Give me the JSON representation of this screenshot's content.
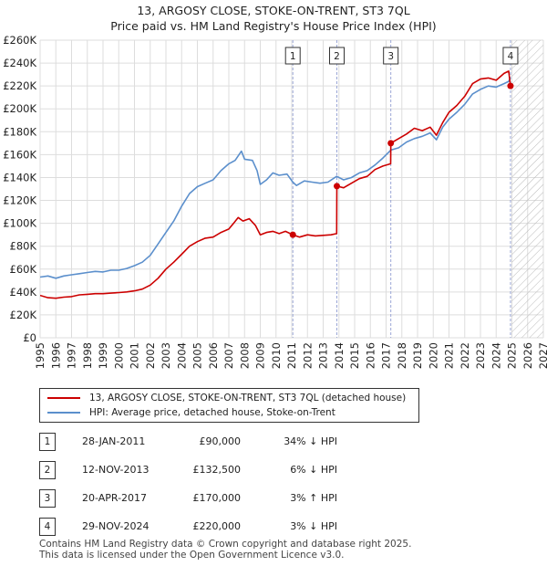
{
  "chart_data": {
    "type": "line",
    "title": "13, ARGOSY CLOSE, STOKE-ON-TRENT, ST3 7QL",
    "subtitle": "Price paid vs. HM Land Registry's House Price Index (HPI)",
    "xlim": [
      1995,
      2027
    ],
    "ylim": [
      0,
      260000
    ],
    "x_ticks": [
      1995,
      1996,
      1997,
      1998,
      1999,
      2000,
      2001,
      2002,
      2003,
      2004,
      2005,
      2006,
      2007,
      2008,
      2009,
      2010,
      2011,
      2012,
      2013,
      2014,
      2015,
      2016,
      2017,
      2018,
      2019,
      2020,
      2021,
      2022,
      2023,
      2024,
      2025,
      2026,
      2027
    ],
    "y_ticks": [
      0,
      20000,
      40000,
      60000,
      80000,
      100000,
      120000,
      140000,
      160000,
      180000,
      200000,
      220000,
      240000,
      260000
    ],
    "y_tick_labels": [
      "£0",
      "£20K",
      "£40K",
      "£60K",
      "£80K",
      "£100K",
      "£120K",
      "£140K",
      "£160K",
      "£180K",
      "£200K",
      "£220K",
      "£240K",
      "£260K"
    ],
    "forecast_start": 2025.0,
    "series": [
      {
        "name": "13, ARGOSY CLOSE, STOKE-ON-TRENT, ST3 7QL (detached house)",
        "color": "#cc0000",
        "points": [
          [
            1995.0,
            37000
          ],
          [
            1995.5,
            35000
          ],
          [
            1996.0,
            34500
          ],
          [
            1996.5,
            35500
          ],
          [
            1997.0,
            36000
          ],
          [
            1997.5,
            37500
          ],
          [
            1998.0,
            38000
          ],
          [
            1998.5,
            38500
          ],
          [
            1999.0,
            38500
          ],
          [
            1999.5,
            39000
          ],
          [
            2000.0,
            39500
          ],
          [
            2000.5,
            40000
          ],
          [
            2001.0,
            41000
          ],
          [
            2001.5,
            42500
          ],
          [
            2002.0,
            46000
          ],
          [
            2002.5,
            52000
          ],
          [
            2003.0,
            60000
          ],
          [
            2003.5,
            66000
          ],
          [
            2004.0,
            73000
          ],
          [
            2004.5,
            80000
          ],
          [
            2005.0,
            84000
          ],
          [
            2005.5,
            87000
          ],
          [
            2006.0,
            88000
          ],
          [
            2006.5,
            92000
          ],
          [
            2007.0,
            95000
          ],
          [
            2007.3,
            100000
          ],
          [
            2007.6,
            105000
          ],
          [
            2007.9,
            102000
          ],
          [
            2008.3,
            104000
          ],
          [
            2008.7,
            98000
          ],
          [
            2009.0,
            90000
          ],
          [
            2009.4,
            92000
          ],
          [
            2009.8,
            93000
          ],
          [
            2010.2,
            91000
          ],
          [
            2010.6,
            93000
          ],
          [
            2011.07,
            90000
          ],
          [
            2011.5,
            88000
          ],
          [
            2012.0,
            90000
          ],
          [
            2012.5,
            89000
          ],
          [
            2013.0,
            89500
          ],
          [
            2013.5,
            90000
          ],
          [
            2013.86,
            91000
          ],
          [
            2013.87,
            132500
          ],
          [
            2014.3,
            131000
          ],
          [
            2014.8,
            135000
          ],
          [
            2015.3,
            139000
          ],
          [
            2015.8,
            141000
          ],
          [
            2016.3,
            147000
          ],
          [
            2016.8,
            150000
          ],
          [
            2017.29,
            152000
          ],
          [
            2017.3,
            170000
          ],
          [
            2017.8,
            174000
          ],
          [
            2018.3,
            178000
          ],
          [
            2018.8,
            183000
          ],
          [
            2019.3,
            181000
          ],
          [
            2019.8,
            184000
          ],
          [
            2020.2,
            177000
          ],
          [
            2020.6,
            188000
          ],
          [
            2021.0,
            197000
          ],
          [
            2021.5,
            203000
          ],
          [
            2022.0,
            211000
          ],
          [
            2022.5,
            222000
          ],
          [
            2023.0,
            226000
          ],
          [
            2023.5,
            227000
          ],
          [
            2024.0,
            225000
          ],
          [
            2024.5,
            231000
          ],
          [
            2024.8,
            233000
          ],
          [
            2024.91,
            220000
          ]
        ]
      },
      {
        "name": "HPI: Average price, detached house, Stoke-on-Trent",
        "color": "#5b8fcc",
        "points": [
          [
            1995.0,
            53000
          ],
          [
            1995.5,
            54000
          ],
          [
            1996.0,
            52000
          ],
          [
            1996.5,
            54000
          ],
          [
            1997.0,
            55000
          ],
          [
            1997.5,
            56000
          ],
          [
            1998.0,
            57000
          ],
          [
            1998.5,
            58000
          ],
          [
            1999.0,
            57500
          ],
          [
            1999.5,
            59000
          ],
          [
            2000.0,
            59000
          ],
          [
            2000.5,
            60500
          ],
          [
            2001.0,
            63000
          ],
          [
            2001.5,
            66000
          ],
          [
            2002.0,
            72000
          ],
          [
            2002.5,
            82000
          ],
          [
            2003.0,
            92000
          ],
          [
            2003.5,
            102000
          ],
          [
            2004.0,
            115000
          ],
          [
            2004.5,
            126000
          ],
          [
            2005.0,
            132000
          ],
          [
            2005.5,
            135000
          ],
          [
            2006.0,
            138000
          ],
          [
            2006.5,
            146000
          ],
          [
            2007.0,
            152000
          ],
          [
            2007.4,
            155000
          ],
          [
            2007.8,
            163000
          ],
          [
            2008.0,
            156000
          ],
          [
            2008.5,
            155000
          ],
          [
            2008.8,
            146000
          ],
          [
            2009.0,
            134000
          ],
          [
            2009.4,
            138000
          ],
          [
            2009.8,
            144000
          ],
          [
            2010.2,
            142000
          ],
          [
            2010.7,
            143000
          ],
          [
            2011.07,
            136000
          ],
          [
            2011.3,
            133000
          ],
          [
            2011.8,
            137000
          ],
          [
            2012.3,
            136000
          ],
          [
            2012.8,
            135000
          ],
          [
            2013.3,
            136000
          ],
          [
            2013.86,
            141000
          ],
          [
            2014.3,
            138000
          ],
          [
            2014.8,
            140000
          ],
          [
            2015.3,
            144000
          ],
          [
            2015.8,
            146000
          ],
          [
            2016.3,
            151000
          ],
          [
            2016.8,
            157000
          ],
          [
            2017.3,
            164000
          ],
          [
            2017.8,
            166000
          ],
          [
            2018.3,
            171000
          ],
          [
            2018.8,
            174000
          ],
          [
            2019.3,
            176000
          ],
          [
            2019.8,
            179000
          ],
          [
            2020.2,
            173000
          ],
          [
            2020.6,
            184000
          ],
          [
            2021.0,
            191000
          ],
          [
            2021.5,
            197000
          ],
          [
            2022.0,
            204000
          ],
          [
            2022.5,
            213000
          ],
          [
            2023.0,
            217000
          ],
          [
            2023.5,
            220000
          ],
          [
            2024.0,
            219000
          ],
          [
            2024.5,
            222000
          ],
          [
            2024.8,
            224000
          ],
          [
            2024.91,
            227000
          ]
        ]
      }
    ],
    "sales": [
      {
        "num": "1",
        "x": 2011.07,
        "price_value": 90000,
        "date": "28-JAN-2011",
        "price": "£90,000",
        "hpi": "34% ↓ HPI"
      },
      {
        "num": "2",
        "x": 2013.87,
        "price_value": 132500,
        "date": "12-NOV-2013",
        "price": "£132,500",
        "hpi": "6% ↓ HPI"
      },
      {
        "num": "3",
        "x": 2017.3,
        "price_value": 170000,
        "date": "20-APR-2017",
        "price": "£170,000",
        "hpi": "3% ↑ HPI"
      },
      {
        "num": "4",
        "x": 2024.91,
        "price_value": 220000,
        "date": "29-NOV-2024",
        "price": "£220,000",
        "hpi": "3% ↓ HPI"
      }
    ]
  },
  "legend": {
    "property_label": "13, ARGOSY CLOSE, STOKE-ON-TRENT, ST3 7QL (detached house)",
    "hpi_label": "HPI: Average price, detached house, Stoke-on-Trent"
  },
  "footer": {
    "line1": "Contains HM Land Registry data © Crown copyright and database right 2025.",
    "line2": "This data is licensed under the Open Government Licence v3.0."
  },
  "colors": {
    "property": "#cc0000",
    "hpi": "#5b8fcc",
    "grid": "#dddddd",
    "forecast_hatch": "#bbbbbb",
    "marker_line": "#9aa6d6"
  }
}
